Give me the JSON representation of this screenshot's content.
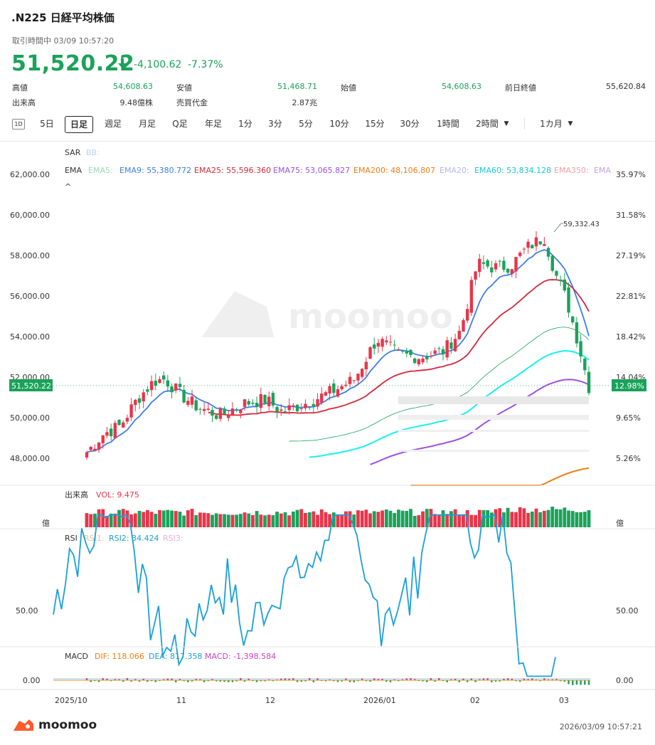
{
  "header": {
    "title": ".N225  日経平均株価",
    "status": "取引時間中 03/09 10:57:20",
    "price": "51,520.22",
    "change": "-4,100.62",
    "change_pct": "-7.37%"
  },
  "stats": [
    {
      "label": "高値",
      "value": "54,608.63"
    },
    {
      "label": "安値",
      "value": "51,468.71"
    },
    {
      "label": "始値",
      "value": "54,608.63"
    },
    {
      "label": "前日終値",
      "value": "55,620.84"
    },
    {
      "label": "出来高",
      "value": "9.48億株"
    },
    {
      "label": "売買代金",
      "value": "2.87兆"
    }
  ],
  "toolbar": {
    "items": [
      "5日",
      "日足",
      "週足",
      "月足",
      "Q足",
      "年足",
      "1分",
      "3分",
      "5分",
      "10分",
      "15分",
      "30分",
      "1時間",
      "2時間",
      "1カ月"
    ],
    "active": "日足",
    "settings_icon_label": "1D"
  },
  "main_chart": {
    "indicator_sar": "SAR",
    "indicator_bb": "BB:",
    "ema_label": "EMA",
    "ema_values": [
      {
        "name": "EMA5:",
        "value": "",
        "color": "#9bd7b3"
      },
      {
        "name": "EMA9: 55,380.772",
        "value": "",
        "color": "#3d7ee6"
      },
      {
        "name": "EMA25: 55,596.360",
        "value": "",
        "color": "#d6283c"
      },
      {
        "name": "EMA75: 53,065.827",
        "value": "",
        "color": "#9b50e0"
      },
      {
        "name": "EMA200: 48,106.807",
        "value": "",
        "color": "#f07d14"
      },
      {
        "name": "EMA20:",
        "value": "",
        "color": "#b8b4ec"
      },
      {
        "name": "EMA60: 53,834.128",
        "value": "",
        "color": "#19c8d2"
      },
      {
        "name": "EMA350:",
        "value": "",
        "color": "#f0a0a8"
      },
      {
        "name": "EMA",
        "value": "",
        "color": "#c8a0e0"
      }
    ],
    "collapse_symbol": "^",
    "y_ticks": [
      "62,000.00",
      "60,000.00",
      "58,000.00",
      "56,000.00",
      "54,000.00",
      "52,000.00",
      "50,000.00",
      "48,000.00"
    ],
    "y_pct_ticks": [
      "35.97%",
      "31.58%",
      "27.19%",
      "22.81%",
      "18.42%",
      "14.04%",
      "9.65%",
      "5.26%"
    ],
    "high_annotation": "59,332.43",
    "current_price_tag": "51,520.22",
    "current_pct_tag": "12.98%",
    "watermark": "moomoo",
    "colors": {
      "up": "#e8354a",
      "down": "#1aa25a"
    }
  },
  "volume_panel": {
    "label": "出来高",
    "vol": "VOL: 9.475",
    "unit_left": "億",
    "unit_right": "億"
  },
  "rsi_panel": {
    "label": "RSI",
    "rsi1": "RSI1:",
    "rsi2": "RSI2: 34.424",
    "rsi3": "RSI3:",
    "tick": "50.00",
    "tick_right": "50.00"
  },
  "macd_panel": {
    "label": "MACD",
    "dif": "DIF: 118.066",
    "dea": "DEA: 817.358",
    "macd": "MACD: -1,398.584",
    "tick": "0.00",
    "tick_right": "0.00"
  },
  "x_axis": [
    "2025/10",
    "11",
    "12",
    "2026/01",
    "02",
    "03"
  ],
  "footer": {
    "brand": "moomoo",
    "timestamp": "2026/03/09 10:57:21"
  },
  "chart_data": {
    "type": "candlestick",
    "title": ".N225  日経平均株価",
    "x_labels": [
      "2025/10",
      "11",
      "12",
      "2026/01",
      "02",
      "03"
    ],
    "y_range": [
      47000,
      63000
    ],
    "approx_closes": [
      48700,
      49300,
      49800,
      50600,
      51200,
      51700,
      51100,
      50700,
      50300,
      49800,
      49300,
      49200,
      50100,
      50300,
      50900,
      51100,
      51600,
      52500,
      54100,
      53700,
      53300,
      53100,
      54200,
      57800,
      57700,
      57200,
      58700,
      57300,
      56400,
      54100,
      51520
    ],
    "rsi2_last": 34.424
  }
}
